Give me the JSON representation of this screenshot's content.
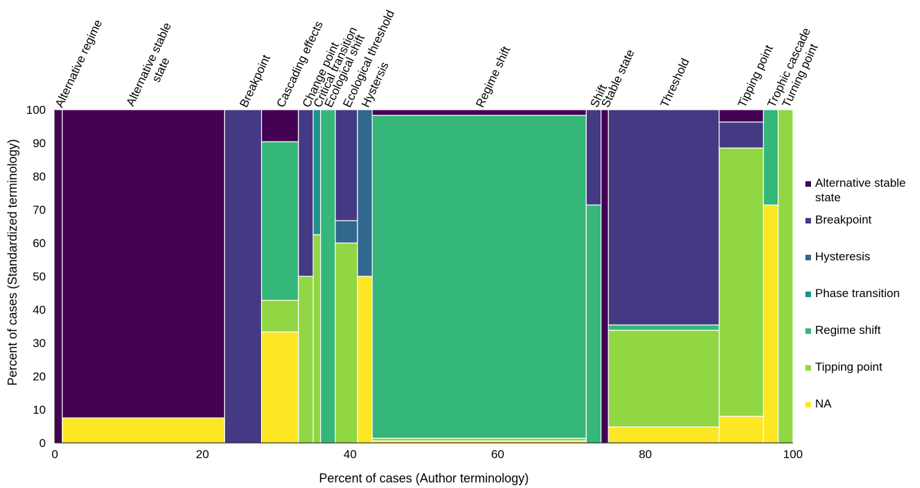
{
  "chart_data": {
    "type": "mosaic",
    "xlabel": "Percent of cases (Author terminology)",
    "ylabel": "Percent of cases (Standardized terminology)",
    "xlim": [
      0,
      100
    ],
    "ylim": [
      0,
      100
    ],
    "x_ticks": [
      0,
      20,
      40,
      60,
      80,
      100
    ],
    "y_ticks": [
      0,
      10,
      20,
      30,
      40,
      50,
      60,
      70,
      80,
      90,
      100
    ],
    "legend_position": "right",
    "legend": [
      {
        "name": "Alternative stable state",
        "lines": [
          "Alternative stable",
          "state"
        ],
        "color": "#440154"
      },
      {
        "name": "Breakpoint",
        "lines": [
          "Breakpoint"
        ],
        "color": "#443983"
      },
      {
        "name": "Hysteresis",
        "lines": [
          "Hysteresis"
        ],
        "color": "#31688e"
      },
      {
        "name": "Phase transition",
        "lines": [
          "Phase transition"
        ],
        "color": "#21918c"
      },
      {
        "name": "Regime shift",
        "lines": [
          "Regime shift"
        ],
        "color": "#35b779"
      },
      {
        "name": "Tipping point",
        "lines": [
          "Tipping point"
        ],
        "color": "#90d743"
      },
      {
        "name": "NA",
        "lines": [
          "NA"
        ],
        "color": "#fde725"
      }
    ],
    "columns": [
      {
        "label": "Alternative regime",
        "lines": [
          "Alternative regime"
        ],
        "width": 1.0,
        "segments": [
          {
            "category": "Alternative stable state",
            "value": 100
          }
        ]
      },
      {
        "label": "Alternative stable state",
        "lines": [
          "Alternative stable",
          "state"
        ],
        "width": 22.0,
        "segments": [
          {
            "category": "NA",
            "value": 7.5
          },
          {
            "category": "Alternative stable state",
            "value": 92.5
          }
        ]
      },
      {
        "label": "Breakpoint",
        "lines": [
          "Breakpoint"
        ],
        "width": 5.0,
        "segments": [
          {
            "category": "Breakpoint",
            "value": 100
          }
        ]
      },
      {
        "label": "Cascading effects",
        "lines": [
          "Cascading effects"
        ],
        "width": 5.0,
        "segments": [
          {
            "category": "NA",
            "value": 33.3
          },
          {
            "category": "Tipping point",
            "value": 9.5
          },
          {
            "category": "Regime shift",
            "value": 47.6
          },
          {
            "category": "Alternative stable state",
            "value": 9.6
          }
        ]
      },
      {
        "label": "Change point",
        "lines": [
          "Change point"
        ],
        "width": 2.0,
        "segments": [
          {
            "category": "Tipping point",
            "value": 50
          },
          {
            "category": "Breakpoint",
            "value": 50
          }
        ]
      },
      {
        "label": "Critical transition",
        "lines": [
          "Critical transition"
        ],
        "width": 1.0,
        "segments": [
          {
            "category": "Tipping point",
            "value": 62.5
          },
          {
            "category": "Phase transition",
            "value": 37.5
          }
        ]
      },
      {
        "label": "Ecological shift",
        "lines": [
          "Ecological shift"
        ],
        "width": 2.0,
        "segments": [
          {
            "category": "Regime shift",
            "value": 100
          }
        ]
      },
      {
        "label": "Ecological threshold",
        "lines": [
          "Ecological threshold"
        ],
        "width": 3.0,
        "segments": [
          {
            "category": "Tipping point",
            "value": 60
          },
          {
            "category": "Hysteresis",
            "value": 6.7
          },
          {
            "category": "Breakpoint",
            "value": 33.3
          }
        ]
      },
      {
        "label": "Hystersis",
        "lines": [
          "Hystersis"
        ],
        "width": 2.0,
        "segments": [
          {
            "category": "NA",
            "value": 50
          },
          {
            "category": "Hysteresis",
            "value": 50
          }
        ]
      },
      {
        "label": "Regime shift",
        "lines": [
          "Regime shift"
        ],
        "width": 29.0,
        "segments": [
          {
            "category": "NA",
            "value": 0.6
          },
          {
            "category": "Tipping point",
            "value": 0.8
          },
          {
            "category": "Regime shift",
            "value": 96.9
          },
          {
            "category": "Alternative stable state",
            "value": 1.7
          }
        ]
      },
      {
        "label": "Shift",
        "lines": [
          "Shift"
        ],
        "width": 2.0,
        "segments": [
          {
            "category": "Regime shift",
            "value": 71.4
          },
          {
            "category": "Breakpoint",
            "value": 28.6
          }
        ]
      },
      {
        "label": "Stable state",
        "lines": [
          "Stable state"
        ],
        "width": 1.0,
        "segments": [
          {
            "category": "Alternative stable state",
            "value": 100
          }
        ]
      },
      {
        "label": "Threshold",
        "lines": [
          "Threshold"
        ],
        "width": 15.0,
        "segments": [
          {
            "category": "NA",
            "value": 4.8
          },
          {
            "category": "Tipping point",
            "value": 29.0
          },
          {
            "category": "Regime shift",
            "value": 1.6
          },
          {
            "category": "Breakpoint",
            "value": 64.6
          }
        ]
      },
      {
        "label": "Tipping point",
        "lines": [
          "Tipping point"
        ],
        "width": 6.0,
        "segments": [
          {
            "category": "NA",
            "value": 8.0
          },
          {
            "category": "Tipping point",
            "value": 80.5
          },
          {
            "category": "Breakpoint",
            "value": 7.8
          },
          {
            "category": "Alternative stable state",
            "value": 3.7
          }
        ]
      },
      {
        "label": "Trophic cascade",
        "lines": [
          "Trophic cascade"
        ],
        "width": 2.0,
        "segments": [
          {
            "category": "NA",
            "value": 71.4
          },
          {
            "category": "Regime shift",
            "value": 28.6
          }
        ]
      },
      {
        "label": "Turning point",
        "lines": [
          "Turning point"
        ],
        "width": 2.0,
        "segments": [
          {
            "category": "Tipping point",
            "value": 100
          }
        ]
      }
    ]
  }
}
